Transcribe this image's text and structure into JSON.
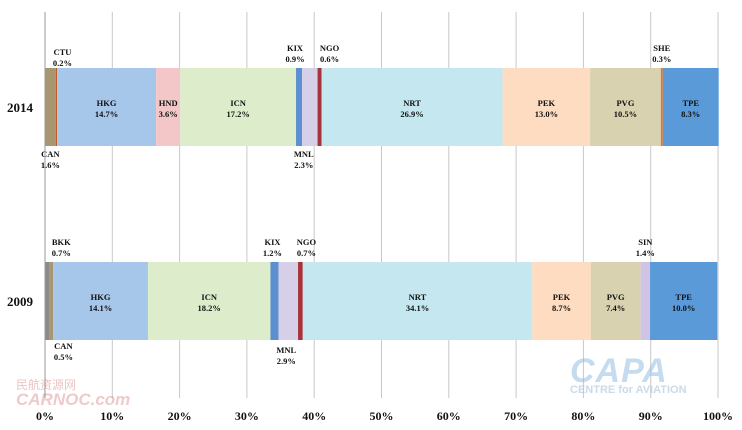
{
  "chart_data": {
    "type": "bar",
    "orientation": "horizontal-stacked-100",
    "categories": [
      "2014",
      "2009"
    ],
    "xlim": [
      0,
      100
    ],
    "xticks": [
      "0%",
      "10%",
      "20%",
      "30%",
      "40%",
      "50%",
      "60%",
      "70%",
      "80%",
      "90%",
      "100%"
    ],
    "grid": "vertical",
    "rows": [
      {
        "category": "2014",
        "segments": [
          {
            "name": "CAN",
            "pct": "1.6%",
            "value": 1.6,
            "color": "#a89670",
            "label": "below"
          },
          {
            "name": "CTU",
            "pct": "0.2%",
            "value": 0.2,
            "color": "#c05a28",
            "label": "above"
          },
          {
            "name": "HKG",
            "pct": "14.7%",
            "value": 14.7,
            "color": "#a6c6ea",
            "label": "inside"
          },
          {
            "name": "HND",
            "pct": "3.6%",
            "value": 3.6,
            "color": "#f3c7c7",
            "label": "inside"
          },
          {
            "name": "ICN",
            "pct": "17.2%",
            "value": 17.2,
            "color": "#ddedcc",
            "label": "inside"
          },
          {
            "name": "KIX",
            "pct": "0.9%",
            "value": 0.9,
            "color": "#5b8fd0",
            "label": "above"
          },
          {
            "name": "MNL",
            "pct": "2.3%",
            "value": 2.3,
            "color": "#d5d0e8",
            "label": "below"
          },
          {
            "name": "NGO",
            "pct": "0.6%",
            "value": 0.6,
            "color": "#a8323a",
            "label": "above"
          },
          {
            "name": "NRT",
            "pct": "26.9%",
            "value": 26.9,
            "color": "#c4e7f0",
            "label": "inside"
          },
          {
            "name": "PEK",
            "pct": "13.0%",
            "value": 13.0,
            "color": "#fddcc1",
            "label": "inside"
          },
          {
            "name": "PVG",
            "pct": "10.5%",
            "value": 10.5,
            "color": "#d9d2b0",
            "label": "inside"
          },
          {
            "name": "SHE",
            "pct": "0.3%",
            "value": 0.3,
            "color": "#e07a2a",
            "label": "above"
          },
          {
            "name": "TPE",
            "pct": "8.3%",
            "value": 8.3,
            "color": "#5a9ad8",
            "label": "inside"
          }
        ]
      },
      {
        "category": "2009",
        "segments": [
          {
            "name": "BKK",
            "pct": "0.7%",
            "value": 0.7,
            "color": "#8a8a8a",
            "label": "above"
          },
          {
            "name": "CAN",
            "pct": "0.5%",
            "value": 0.5,
            "color": "#a89670",
            "label": "below"
          },
          {
            "name": "HKG",
            "pct": "14.1%",
            "value": 14.1,
            "color": "#a6c6ea",
            "label": "inside"
          },
          {
            "name": "ICN",
            "pct": "18.2%",
            "value": 18.2,
            "color": "#ddedcc",
            "label": "inside"
          },
          {
            "name": "KIX",
            "pct": "1.2%",
            "value": 1.2,
            "color": "#5b8fd0",
            "label": "above"
          },
          {
            "name": "MNL",
            "pct": "2.9%",
            "value": 2.9,
            "color": "#d5d0e8",
            "label": "below"
          },
          {
            "name": "NGO",
            "pct": "0.7%",
            "value": 0.7,
            "color": "#a8323a",
            "label": "above"
          },
          {
            "name": "NRT",
            "pct": "34.1%",
            "value": 34.1,
            "color": "#c4e7f0",
            "label": "inside"
          },
          {
            "name": "PEK",
            "pct": "8.7%",
            "value": 8.7,
            "color": "#fddcc1",
            "label": "inside"
          },
          {
            "name": "PVG",
            "pct": "7.4%",
            "value": 7.4,
            "color": "#d9d2b0",
            "label": "inside"
          },
          {
            "name": "SIN",
            "pct": "1.4%",
            "value": 1.4,
            "color": "#cfc3e6",
            "label": "above"
          },
          {
            "name": "TPE",
            "pct": "10.0%",
            "value": 10.0,
            "color": "#5a9ad8",
            "label": "inside"
          }
        ]
      }
    ]
  },
  "watermarks": {
    "capa_title": "CAPA",
    "capa_subtitle": "CENTRE for AVIATION",
    "carnoc_cn": "民航资源网",
    "carnoc_en": "CARNOC.com"
  }
}
